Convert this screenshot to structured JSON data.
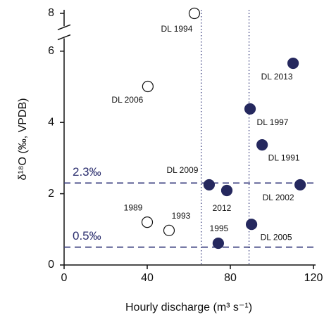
{
  "chart_data": {
    "type": "scatter",
    "xlabel": "Hourly discharge (m³ s⁻¹)",
    "ylabel": "δ¹⁸O (‰, VPDB)",
    "xlim": [
      0,
      120
    ],
    "xticks": [
      0,
      40,
      80,
      120
    ],
    "ylim": [
      0,
      8.1
    ],
    "yticks": [
      0,
      2,
      4,
      6,
      8
    ],
    "y_break": [
      6.4,
      7.6
    ],
    "series": [
      {
        "marker": "open",
        "color": "#111111",
        "x": [
          62.7,
          40.3,
          40,
          50.5
        ],
        "values": [
          8,
          5.01,
          1.2,
          0.97
        ],
        "labels": [
          "DL 1994",
          "DL 2006",
          "1989",
          "1993"
        ]
      },
      {
        "marker": "filled",
        "color": "#25285e",
        "x": [
          110.2,
          89.5,
          95.3,
          69.8,
          78.3,
          113.6,
          90.2,
          74.2
        ],
        "values": [
          5.66,
          4.38,
          3.37,
          2.25,
          2.09,
          2.25,
          1.14,
          0.61
        ],
        "labels": [
          "DL 2013",
          "DL 1997",
          "DL 1991",
          "DL 2009",
          "2012",
          "DL 2002",
          "DL 2005",
          "1995"
        ]
      }
    ],
    "hlines": [
      {
        "value": 2.3,
        "label": "2.3‰"
      },
      {
        "value": 0.5,
        "label": "0.5‰"
      }
    ],
    "hline_color": "#3a3f7f",
    "vlines": [
      66,
      89
    ],
    "vline_color": "#3a3f7f"
  }
}
